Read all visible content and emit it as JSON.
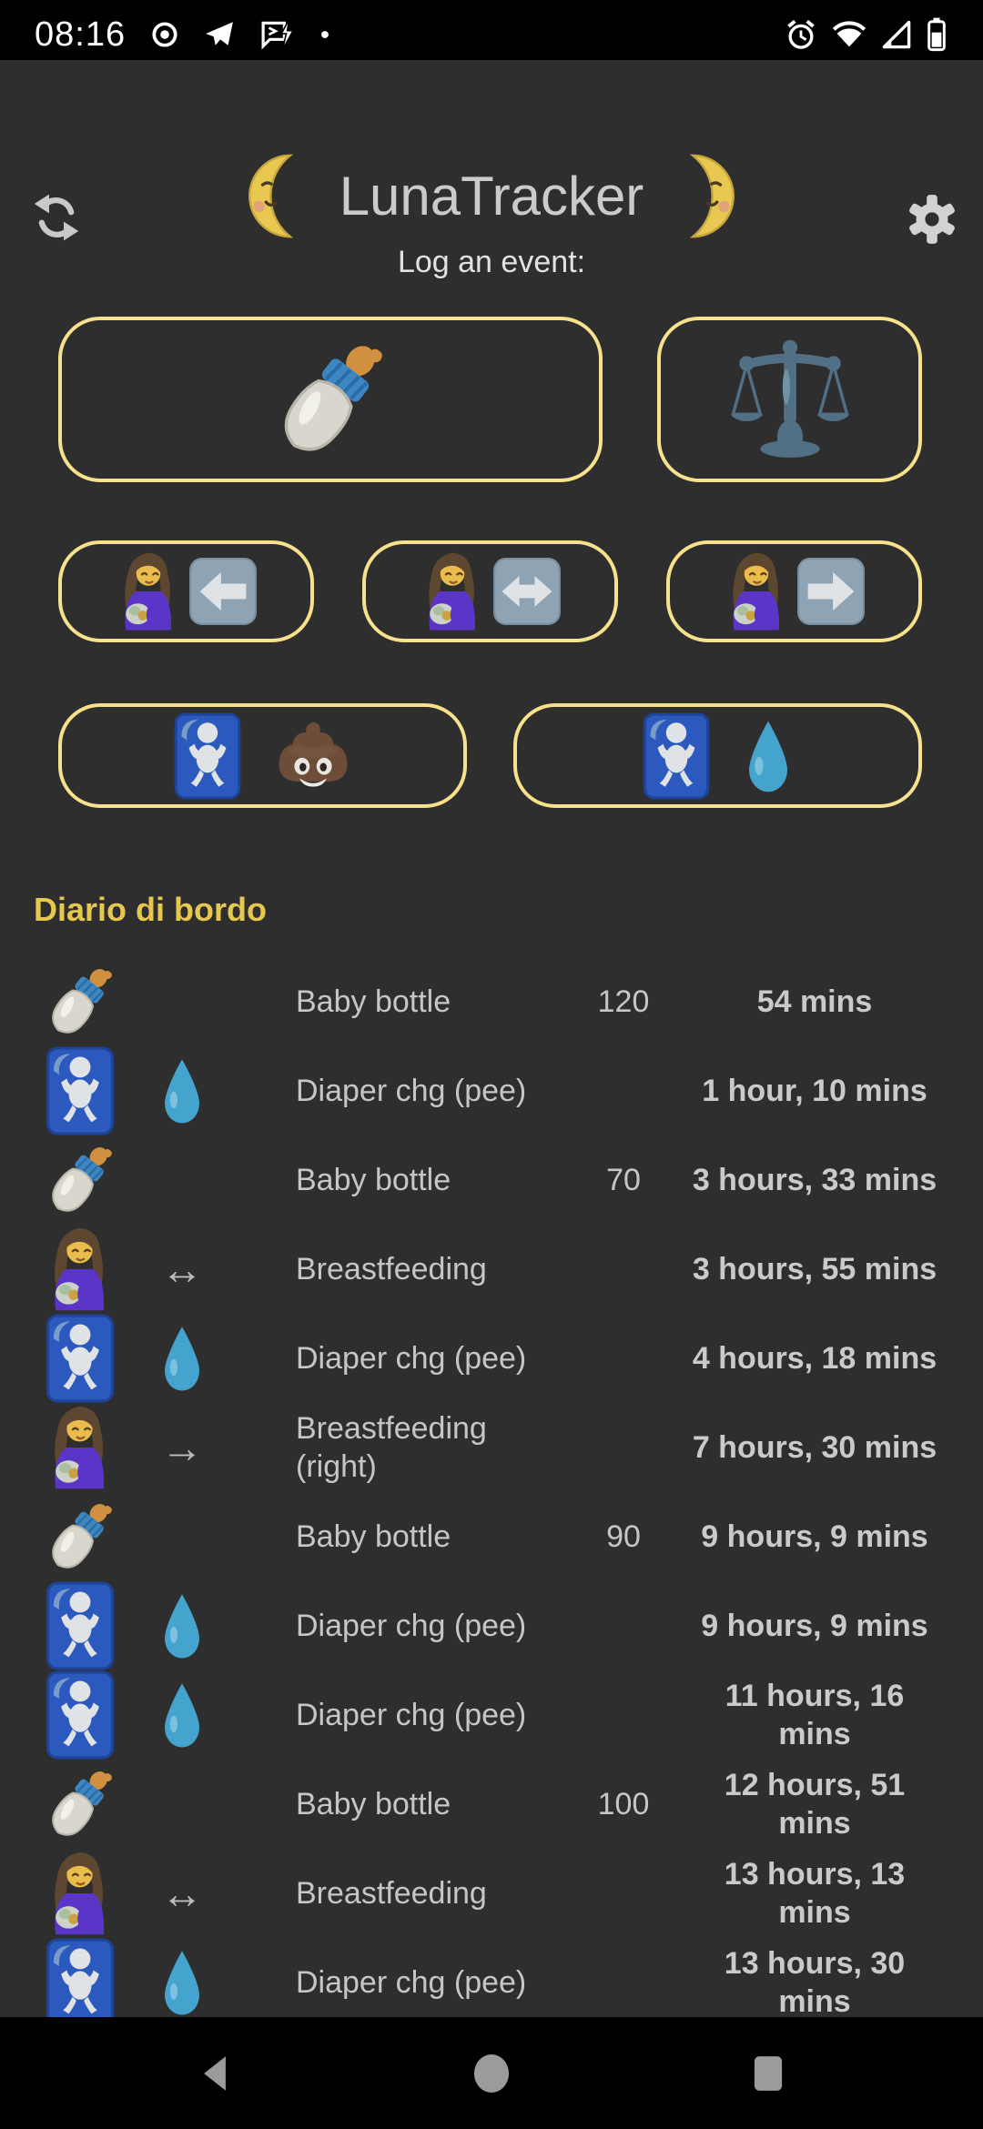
{
  "status_bar": {
    "time": "08:16",
    "left_icons": [
      "record-circle",
      "telegram",
      "sms-lightning",
      "notification-dot"
    ],
    "right_icons": [
      "alarm",
      "wifi",
      "signal",
      "battery"
    ]
  },
  "header": {
    "refresh_icon": "sync",
    "settings_icon": "gear",
    "moon_left_icon": "moon-left-face",
    "title": "LunaTracker",
    "moon_right_icon": "moon-right-face",
    "subtitle": "Log an event:"
  },
  "event_buttons": [
    {
      "name": "log-baby-bottle-button",
      "icons": [
        "baby-bottle"
      ]
    },
    {
      "name": "log-weight-button",
      "icons": [
        "balance-scale"
      ]
    },
    {
      "name": "log-breastfeeding-left-button",
      "icons": [
        "breastfeeding",
        "arrow-left-square"
      ]
    },
    {
      "name": "log-breastfeeding-both-button",
      "icons": [
        "breastfeeding",
        "arrow-left-right-square"
      ]
    },
    {
      "name": "log-breastfeeding-right-button",
      "icons": [
        "breastfeeding",
        "arrow-right-square"
      ]
    },
    {
      "name": "log-diaper-poo-button",
      "icons": [
        "baby-symbol",
        "poop"
      ]
    },
    {
      "name": "log-diaper-pee-button",
      "icons": [
        "baby-symbol",
        "droplet"
      ]
    }
  ],
  "log": {
    "heading": "Diario di bordo",
    "rows": [
      {
        "icon": "baby-bottle",
        "icon2": "",
        "icon2_text": "",
        "label": "Baby bottle",
        "quantity": "120",
        "time": "54 mins"
      },
      {
        "icon": "baby-symbol",
        "icon2": "droplet",
        "icon2_text": "",
        "label": "Diaper chg (pee)",
        "quantity": "",
        "time": "1 hour, 10 mins"
      },
      {
        "icon": "baby-bottle",
        "icon2": "",
        "icon2_text": "",
        "label": "Baby bottle",
        "quantity": "70",
        "time": "3 hours, 33 mins"
      },
      {
        "icon": "breastfeeding",
        "icon2": "",
        "icon2_text": "↔",
        "icon2_name": "left-right-arrow",
        "label": "Breastfeeding",
        "quantity": "",
        "time": "3 hours, 55 mins"
      },
      {
        "icon": "baby-symbol",
        "icon2": "droplet",
        "icon2_text": "",
        "label": "Diaper chg (pee)",
        "quantity": "",
        "time": "4 hours, 18 mins"
      },
      {
        "icon": "breastfeeding",
        "icon2": "",
        "icon2_text": "→",
        "icon2_name": "right-arrow",
        "label": "Breastfeeding (right)",
        "quantity": "",
        "time": "7 hours, 30 mins"
      },
      {
        "icon": "baby-bottle",
        "icon2": "",
        "icon2_text": "",
        "label": "Baby bottle",
        "quantity": "90",
        "time": "9 hours, 9 mins"
      },
      {
        "icon": "baby-symbol",
        "icon2": "droplet",
        "icon2_text": "",
        "label": "Diaper chg (pee)",
        "quantity": "",
        "time": "9 hours, 9 mins"
      },
      {
        "icon": "baby-symbol",
        "icon2": "droplet",
        "icon2_text": "",
        "label": "Diaper chg (pee)",
        "quantity": "",
        "time": "11 hours, 16 mins"
      },
      {
        "icon": "baby-bottle",
        "icon2": "",
        "icon2_text": "",
        "label": "Baby bottle",
        "quantity": "100",
        "time": "12 hours, 51 mins"
      },
      {
        "icon": "breastfeeding",
        "icon2": "",
        "icon2_text": "↔",
        "icon2_name": "left-right-arrow",
        "label": "Breastfeeding",
        "quantity": "",
        "time": "13 hours, 13 mins"
      },
      {
        "icon": "baby-symbol",
        "icon2": "droplet",
        "icon2_text": "",
        "label": "Diaper chg (pee)",
        "quantity": "",
        "time": "13 hours, 30 mins"
      }
    ]
  },
  "nav_bar": {
    "buttons": [
      {
        "name": "back-button",
        "icon": "nav-back"
      },
      {
        "name": "home-button",
        "icon": "nav-home"
      },
      {
        "name": "recents-button",
        "icon": "nav-recents"
      }
    ]
  },
  "accent_colors": {
    "button_border": "#f8e18c",
    "heading_text": "#e7c84e",
    "background": "#2e2e2e",
    "bar_background": "#000000",
    "primary_text": "#c9c9c9"
  }
}
